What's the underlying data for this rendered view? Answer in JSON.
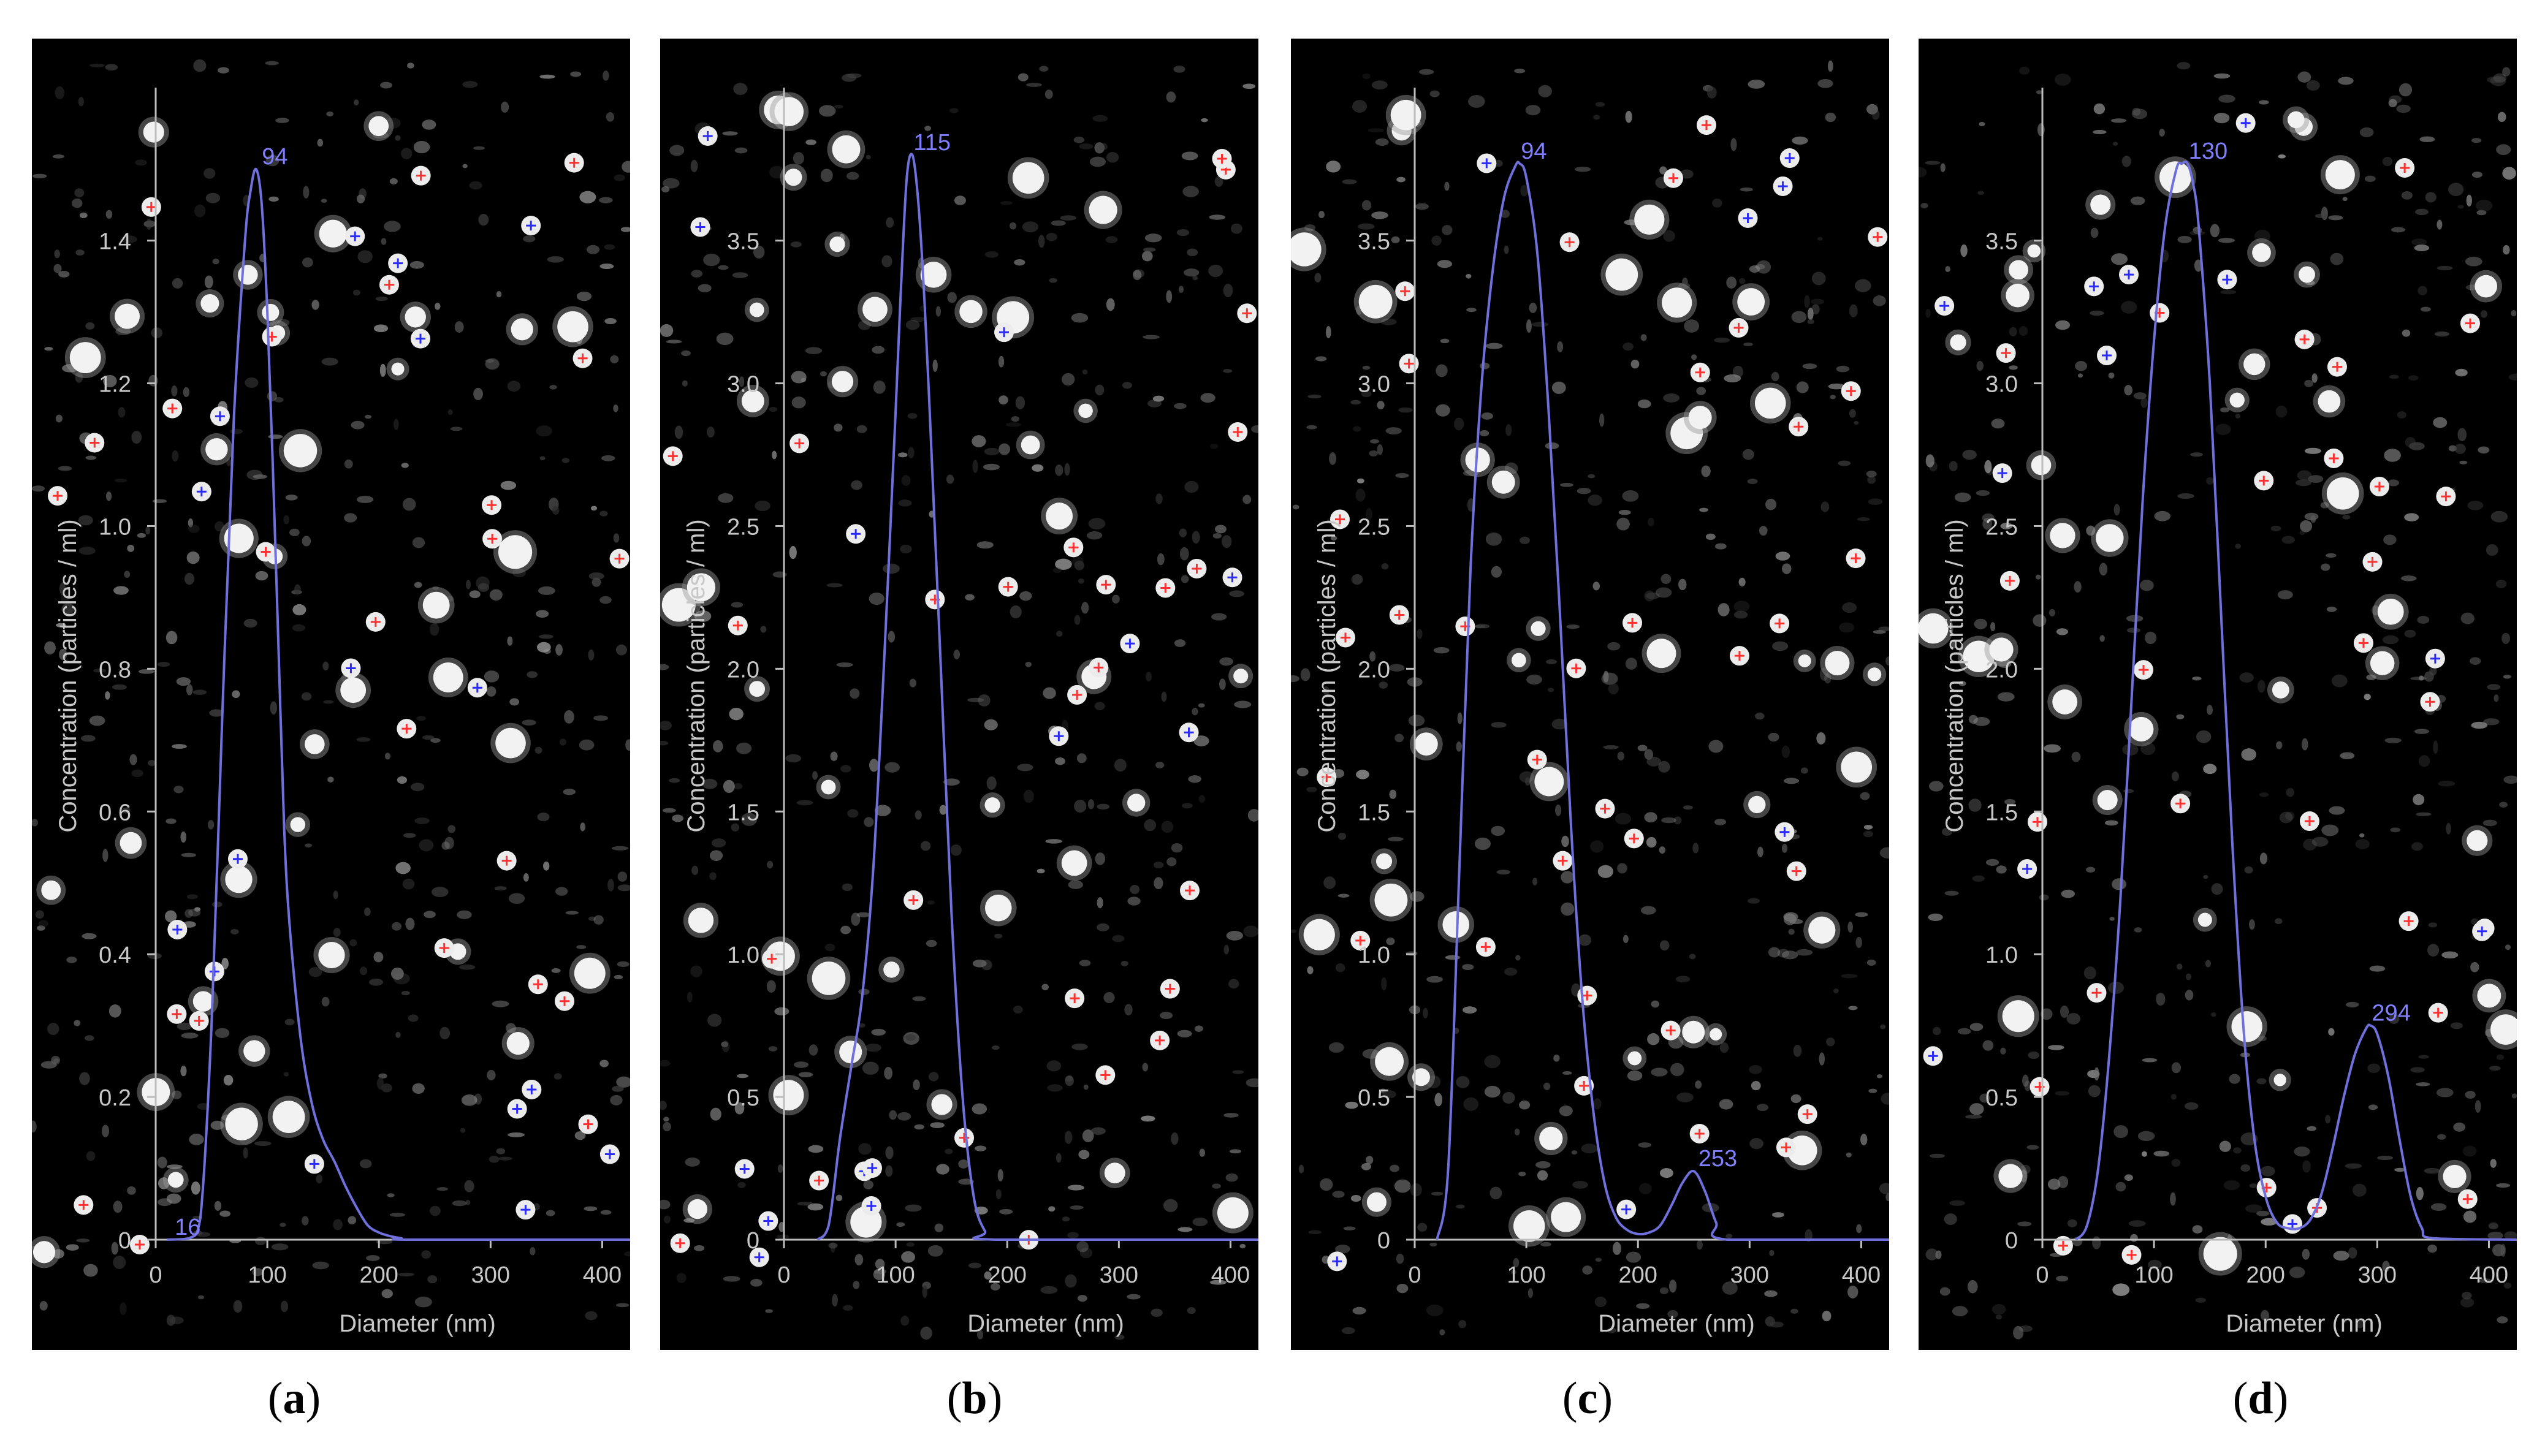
{
  "colors": {
    "background": "#000000",
    "curve": "#7070dd",
    "axis_text": "#c8c8c8",
    "peak_label": "#7f7fff",
    "red_marker": "#ff3030",
    "blue_marker": "#2a2aff"
  },
  "chart_data": [
    {
      "type": "line",
      "panel": "a",
      "caption_letter": "a",
      "xlabel": "Diameter (nm)",
      "ylabel": "Concentration (particles / ml)",
      "xlim": [
        0,
        425
      ],
      "ylim": [
        0,
        1.58
      ],
      "xticks": [
        0,
        100,
        200,
        300,
        400
      ],
      "xtick_labels": [
        "0",
        "100",
        "200",
        "300",
        "400"
      ],
      "yticks": [
        0,
        0.2,
        0.4,
        0.6,
        0.8,
        1.0,
        1.2,
        1.4
      ],
      "ytick_labels": [
        "0",
        "0.2",
        "0.4",
        "0.6",
        "0.8",
        "1.0",
        "1.2",
        "1.4"
      ],
      "series": [
        {
          "x": [
            10,
            30,
            40,
            50,
            60,
            70,
            80,
            85,
            90,
            95,
            100,
            105,
            110,
            115,
            120,
            130,
            140,
            150,
            160,
            170,
            180,
            190,
            200,
            210,
            220,
            230,
            425
          ],
          "y": [
            0,
            0.002,
            0.03,
            0.3,
            0.75,
            1.15,
            1.4,
            1.47,
            1.5,
            1.45,
            1.3,
            1.08,
            0.83,
            0.58,
            0.44,
            0.28,
            0.19,
            0.14,
            0.11,
            0.075,
            0.045,
            0.02,
            0.01,
            0.005,
            0.002,
            0,
            0
          ]
        }
      ],
      "annotations": [
        {
          "x": 94,
          "y": 1.5,
          "text": "94"
        },
        {
          "x": 16,
          "y": 0.0,
          "text": "16"
        }
      ]
    },
    {
      "type": "line",
      "panel": "b",
      "caption_letter": "b",
      "xlabel": "Diameter (nm)",
      "ylabel": "Concentration (particles / ml)",
      "xlim": [
        0,
        425
      ],
      "ylim": [
        0,
        3.95
      ],
      "xticks": [
        0,
        100,
        200,
        300,
        400
      ],
      "xtick_labels": [
        "0",
        "100",
        "200",
        "300",
        "400"
      ],
      "yticks": [
        0,
        0.5,
        1.0,
        1.5,
        2.0,
        2.5,
        3.0,
        3.5
      ],
      "ytick_labels": [
        "0",
        "0.5",
        "1.0",
        "1.5",
        "2.0",
        "2.5",
        "3.0",
        "3.5"
      ],
      "series": [
        {
          "x": [
            30,
            40,
            50,
            60,
            70,
            80,
            90,
            100,
            105,
            110,
            115,
            120,
            125,
            130,
            140,
            150,
            160,
            170,
            180,
            190,
            425
          ],
          "y": [
            0,
            0.05,
            0.35,
            0.6,
            0.85,
            1.3,
            2.05,
            2.9,
            3.35,
            3.72,
            3.8,
            3.65,
            3.35,
            2.95,
            2.05,
            1.15,
            0.5,
            0.15,
            0.03,
            0,
            0
          ]
        }
      ],
      "annotations": [
        {
          "x": 115,
          "y": 3.8,
          "text": "115"
        }
      ]
    },
    {
      "type": "line",
      "panel": "c",
      "caption_letter": "c",
      "xlabel": "Diameter (nm)",
      "ylabel": "Concentration (particles / ml)",
      "xlim": [
        0,
        425
      ],
      "ylim": [
        0,
        3.95
      ],
      "xticks": [
        0,
        100,
        200,
        300,
        400
      ],
      "xtick_labels": [
        "0",
        "100",
        "200",
        "300",
        "400"
      ],
      "yticks": [
        0,
        0.5,
        1.0,
        1.5,
        2.0,
        2.5,
        3.0,
        3.5
      ],
      "ytick_labels": [
        "0",
        "0.5",
        "1.0",
        "1.5",
        "2.0",
        "2.5",
        "3.0",
        "3.5"
      ],
      "series": [
        {
          "x": [
            20,
            30,
            40,
            50,
            60,
            70,
            80,
            90,
            94,
            100,
            110,
            120,
            130,
            140,
            150,
            160,
            170,
            180,
            190,
            200,
            210,
            220,
            230,
            240,
            250,
            260,
            270,
            280,
            425
          ],
          "y": [
            0,
            0.25,
            1.3,
            2.35,
            3.0,
            3.4,
            3.65,
            3.76,
            3.77,
            3.72,
            3.45,
            2.9,
            2.2,
            1.45,
            0.85,
            0.45,
            0.2,
            0.08,
            0.035,
            0.02,
            0.025,
            0.05,
            0.12,
            0.2,
            0.24,
            0.17,
            0.06,
            0,
            0
          ]
        }
      ],
      "annotations": [
        {
          "x": 94,
          "y": 3.77,
          "text": "94"
        },
        {
          "x": 253,
          "y": 0.24,
          "text": "253"
        }
      ]
    },
    {
      "type": "line",
      "panel": "d",
      "caption_letter": "d",
      "xlabel": "Diameter (nm)",
      "ylabel": "Concentration (particles / ml)",
      "xlim": [
        0,
        425
      ],
      "ylim": [
        0,
        3.95
      ],
      "xticks": [
        0,
        100,
        200,
        300,
        400
      ],
      "xtick_labels": [
        "0",
        "100",
        "200",
        "300",
        "400"
      ],
      "yticks": [
        0,
        0.5,
        1.0,
        1.5,
        2.0,
        2.5,
        3.0,
        3.5
      ],
      "ytick_labels": [
        "0",
        "0.5",
        "1.0",
        "1.5",
        "2.0",
        "2.5",
        "3.0",
        "3.5"
      ],
      "series": [
        {
          "x": [
            30,
            40,
            50,
            60,
            70,
            80,
            90,
            100,
            110,
            120,
            125,
            130,
            135,
            140,
            150,
            160,
            170,
            180,
            190,
            200,
            210,
            220,
            230,
            240,
            250,
            260,
            270,
            280,
            290,
            294,
            300,
            310,
            320,
            330,
            340,
            350,
            425
          ],
          "y": [
            0,
            0.05,
            0.25,
            0.65,
            1.2,
            1.9,
            2.6,
            3.15,
            3.55,
            3.75,
            3.77,
            3.77,
            3.7,
            3.55,
            3.0,
            2.2,
            1.4,
            0.75,
            0.35,
            0.15,
            0.06,
            0.04,
            0.04,
            0.07,
            0.16,
            0.32,
            0.5,
            0.65,
            0.74,
            0.75,
            0.72,
            0.57,
            0.35,
            0.15,
            0.04,
            0.005,
            0
          ]
        }
      ],
      "annotations": [
        {
          "x": 130,
          "y": 3.77,
          "text": "130"
        },
        {
          "x": 294,
          "y": 0.75,
          "text": "294"
        }
      ]
    }
  ]
}
